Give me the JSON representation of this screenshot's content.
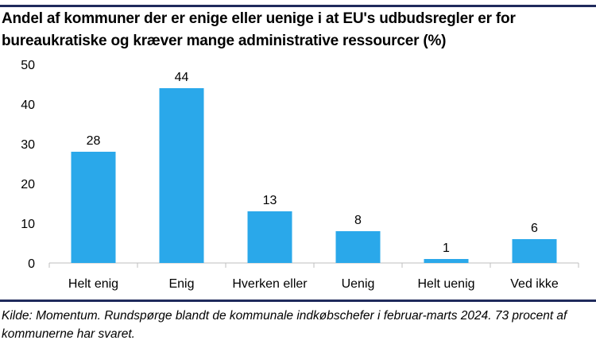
{
  "chart_data": {
    "type": "bar",
    "title": "Andel af kommuner der er enige eller uenige i at EU's udbudsregler er for bureaukratiske og kræver mange administrative ressourcer (%)",
    "categories": [
      "Helt enig",
      "Enig",
      "Hverken eller",
      "Uenig",
      "Helt uenig",
      "Ved ikke"
    ],
    "values": [
      28,
      44,
      13,
      8,
      1,
      6
    ],
    "data_labels": [
      "28",
      "44",
      "13",
      "8",
      "1",
      "6"
    ],
    "yticks": [
      "0",
      "10",
      "20",
      "30",
      "40",
      "50"
    ],
    "ylim": [
      0,
      50
    ],
    "xlabel": "",
    "ylabel": "",
    "grid": false,
    "bar_color": "#2aa8ea"
  },
  "footnote": "Kilde: Momentum. Rundspørge blandt de kommunale indkøbschefer i februar-marts 2024. 73 procent af kommunerne har svaret."
}
